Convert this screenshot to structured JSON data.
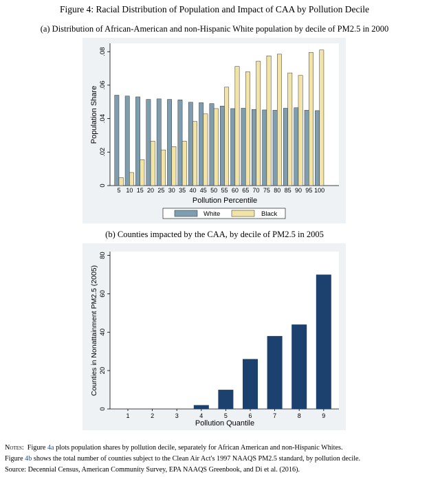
{
  "figure": {
    "title": "Figure 4: Racial Distribution of Population and Impact of CAA by Pollution Decile",
    "subtitle_a": "(a) Distribution of African-American and non-Hispanic White population by decile of PM2.5 in 2000",
    "subtitle_b": "(b) Counties impacted by the CAA, by decile of PM2.5 in 2005"
  },
  "notes": {
    "label": "Notes:",
    "line1_pre": "Figure ",
    "ref_a": "4a",
    "line1_post": " plots population shares by pollution decile, separately for African American and non-Hispanic Whites.",
    "line2_pre": "Figure ",
    "ref_b": "4b",
    "line2_post": " shows the total number of counties subject to the Clean Air Act's 1997 NAAQS PM2.5 standard, by pollution decile.",
    "line3": "Source: Decennial Census, American Community Survey, EPA NAAQS Greenbook, and Di et al. (2016)."
  },
  "chart_data": [
    {
      "type": "bar",
      "categories": [
        "5",
        "10",
        "15",
        "20",
        "25",
        "30",
        "35",
        "40",
        "45",
        "50",
        "55",
        "60",
        "65",
        "70",
        "75",
        "80",
        "85",
        "90",
        "95",
        "100"
      ],
      "series": [
        {
          "name": "White",
          "color": "#7e9eb0",
          "values": [
            0.054,
            0.0535,
            0.053,
            0.0515,
            0.0518,
            0.0515,
            0.0512,
            0.0498,
            0.0495,
            0.049,
            0.0475,
            0.046,
            0.0462,
            0.0455,
            0.0452,
            0.045,
            0.0462,
            0.0465,
            0.045,
            0.0448
          ]
        },
        {
          "name": "Black",
          "color": "#f2e3a6",
          "values": [
            0.0048,
            0.0078,
            0.0155,
            0.0265,
            0.0213,
            0.0233,
            0.0265,
            0.0383,
            0.0428,
            0.046,
            0.0588,
            0.0712,
            0.068,
            0.0743,
            0.0775,
            0.0785,
            0.0673,
            0.0658,
            0.0795,
            0.081
          ]
        }
      ],
      "xlabel": "Pollution Percentile",
      "ylabel": "Population Share",
      "ylim": [
        0,
        0.085
      ],
      "yticks": [
        0,
        0.02,
        0.04,
        0.06,
        0.08
      ],
      "ytick_labels": [
        "0",
        ".02",
        ".04",
        ".06",
        ".08"
      ],
      "legend": [
        "White",
        "Black"
      ],
      "legend_position": "bottom",
      "grid": false
    },
    {
      "type": "bar",
      "categories": [
        "1",
        "2",
        "3",
        "4",
        "5",
        "6",
        "7",
        "8",
        "9"
      ],
      "values": [
        0,
        0,
        0,
        2,
        10,
        26,
        38,
        44,
        70
      ],
      "color": "#1c416e",
      "xlabel": "Pollution Quantile",
      "ylabel": "Counties in Nonattainment PM2.5 (2005)",
      "ylim": [
        0,
        82
      ],
      "yticks": [
        0,
        20,
        40,
        60,
        80
      ],
      "ytick_labels": [
        "0",
        "20",
        "40",
        "60",
        "80"
      ],
      "grid": false
    }
  ]
}
